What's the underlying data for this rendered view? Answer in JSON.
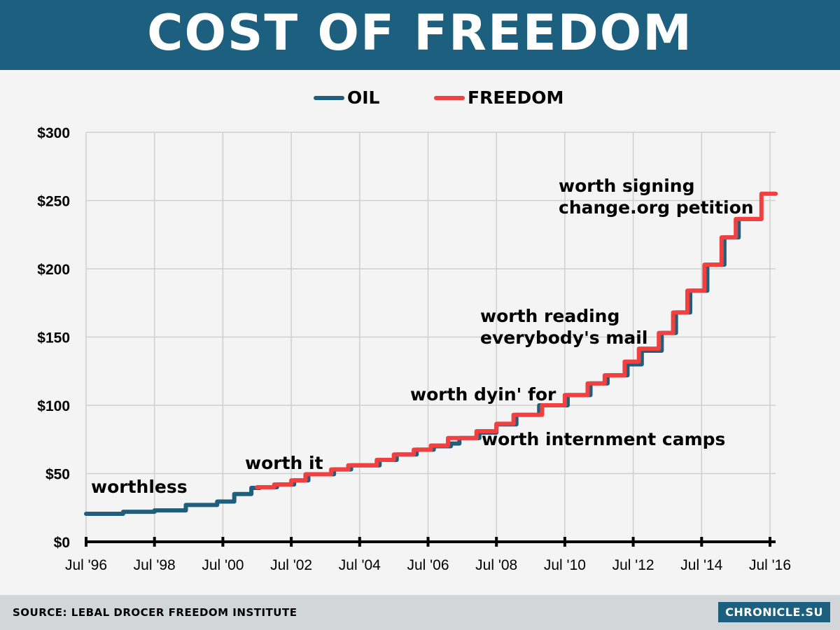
{
  "header": {
    "title": "COST OF FREEDOM"
  },
  "footer": {
    "source": "SOURCE: LEBAL DROCER FREEDOM INSTITUTE",
    "brand": "CHRONICLE.SU"
  },
  "colors": {
    "header_bg": "#1c5f7e",
    "oil": "#1f5f7d",
    "freedom": "#f04040",
    "background": "#f4f4f4",
    "footer_bg": "#d2d6d8"
  },
  "chart_data": {
    "type": "line",
    "step": true,
    "title": "COST OF FREEDOM",
    "xlabel": "",
    "ylabel": "",
    "xlim": [
      "1996-07",
      "2016-09"
    ],
    "ylim": [
      0,
      300
    ],
    "grid": true,
    "legend_position": "top",
    "y_ticks": [
      "$0",
      "$50",
      "$100",
      "$150",
      "$200",
      "$250",
      "$300"
    ],
    "x_ticks": [
      "Jul '96",
      "Jul '98",
      "Jul '00",
      "Jul '02",
      "Jul '04",
      "Jul '06",
      "Jul '08",
      "Jul '10",
      "Jul '12",
      "Jul '14",
      "Jul '16"
    ],
    "series": [
      {
        "name": "OIL",
        "color": "#1f5f7d",
        "points": [
          [
            "1996-07",
            20.5
          ],
          [
            "1997-08",
            22
          ],
          [
            "1998-07",
            23
          ],
          [
            "1999-06",
            27
          ],
          [
            "2000-05",
            29.5
          ],
          [
            "2000-11",
            35
          ],
          [
            "2001-05",
            39.5
          ],
          [
            "2001-08",
            40
          ],
          [
            "2002-02",
            42
          ],
          [
            "2002-08",
            45
          ],
          [
            "2003-01",
            49.5
          ],
          [
            "2003-10",
            53
          ],
          [
            "2004-04",
            56
          ],
          [
            "2005-02",
            60
          ],
          [
            "2005-08",
            64
          ],
          [
            "2006-03",
            67.5
          ],
          [
            "2006-09",
            70
          ],
          [
            "2007-03",
            72
          ],
          [
            "2007-06",
            76
          ],
          [
            "2008-01",
            80
          ],
          [
            "2008-07",
            86
          ],
          [
            "2009-02",
            93
          ],
          [
            "2009-10",
            100
          ],
          [
            "2010-08",
            107.5
          ],
          [
            "2011-04",
            116
          ],
          [
            "2011-10",
            122
          ],
          [
            "2012-05",
            130
          ],
          [
            "2012-10",
            140
          ],
          [
            "2013-05",
            153
          ],
          [
            "2013-10",
            168
          ],
          [
            "2014-03",
            184
          ],
          [
            "2014-09",
            203
          ],
          [
            "2015-03",
            223
          ],
          [
            "2015-08",
            236.5
          ],
          [
            "2016-04",
            236.5
          ]
        ]
      },
      {
        "name": "FREEDOM",
        "color": "#f04040",
        "points": [
          [
            "2001-07",
            40
          ],
          [
            "2002-01",
            42
          ],
          [
            "2002-07",
            45
          ],
          [
            "2002-12",
            49.5
          ],
          [
            "2003-09",
            53
          ],
          [
            "2004-03",
            56
          ],
          [
            "2005-01",
            60
          ],
          [
            "2005-07",
            64
          ],
          [
            "2006-02",
            67.5
          ],
          [
            "2006-08",
            70.5
          ],
          [
            "2007-02",
            76
          ],
          [
            "2007-12",
            81
          ],
          [
            "2008-07",
            86.5
          ],
          [
            "2009-01",
            93
          ],
          [
            "2009-11",
            100
          ],
          [
            "2010-07",
            107.5
          ],
          [
            "2011-03",
            116
          ],
          [
            "2011-09",
            122
          ],
          [
            "2012-04",
            132
          ],
          [
            "2012-09",
            141.5
          ],
          [
            "2013-04",
            153
          ],
          [
            "2013-09",
            168
          ],
          [
            "2014-02",
            184
          ],
          [
            "2014-08",
            203
          ],
          [
            "2015-02",
            223
          ],
          [
            "2015-07",
            236.5
          ],
          [
            "2016-04",
            255
          ],
          [
            "2016-09",
            255
          ]
        ]
      }
    ],
    "annotations": {
      "worthless": "worthless",
      "worth_it": "worth it",
      "worth_dying": "worth dyin' for",
      "internment": "worth internment camps",
      "mail_1": "worth reading",
      "mail_2": "everybody's mail",
      "petition_1": "worth signing",
      "petition_2": "change.org petition"
    }
  }
}
